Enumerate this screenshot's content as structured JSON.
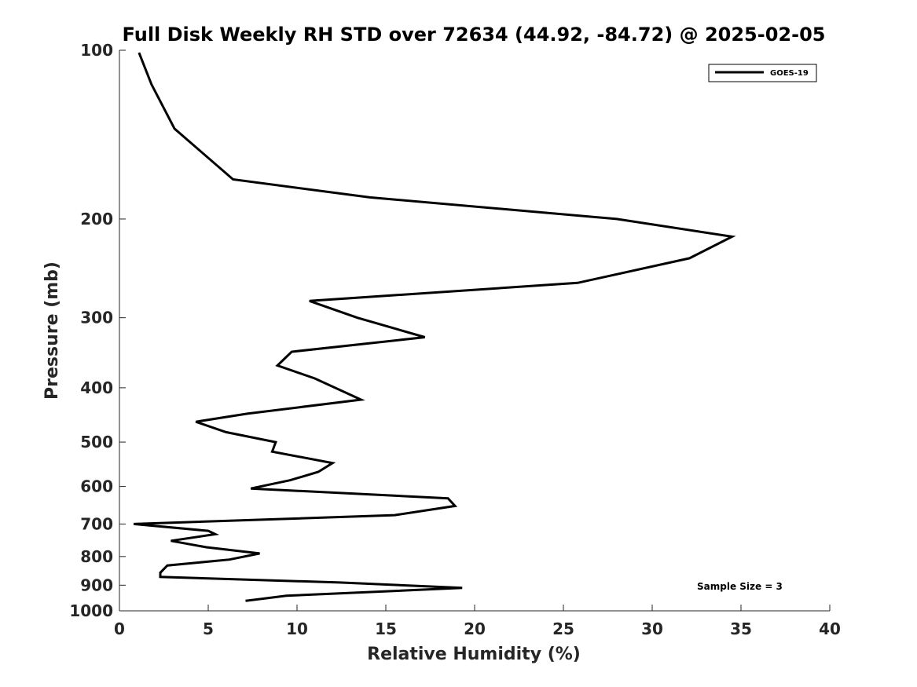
{
  "chart_data": {
    "type": "line",
    "title": "Full Disk Weekly RH STD over 72634 (44.92, -84.72) @ 2025-02-05",
    "xlabel": "Relative Humidity (%)",
    "ylabel": "Pressure (mb)",
    "xlim": [
      0,
      40
    ],
    "ylim": [
      100,
      1000
    ],
    "y_scale": "log",
    "y_reversed": true,
    "xticks": [
      0,
      5,
      10,
      15,
      20,
      25,
      30,
      35,
      40
    ],
    "yticks": [
      100,
      200,
      300,
      400,
      500,
      600,
      700,
      800,
      900,
      1000
    ],
    "grid": false,
    "legend_position": "top-right",
    "series": [
      {
        "name": "GOES-19",
        "color": "#000000",
        "x": [
          1.1,
          1.8,
          3.1,
          6.4,
          14.1,
          28.0,
          34.5,
          32.1,
          25.8,
          10.7,
          13.4,
          17.2,
          9.7,
          8.9,
          11.0,
          13.6,
          7.2,
          4.3,
          6.0,
          8.8,
          8.6,
          12.0,
          11.2,
          9.6,
          7.4,
          18.5,
          18.9,
          15.5,
          0.8,
          5.0,
          5.4,
          2.9,
          4.9,
          7.9,
          6.2,
          2.7,
          2.3,
          2.3,
          12.4,
          19.3,
          9.4,
          7.1
        ],
        "y": [
          101,
          115,
          138,
          170,
          183,
          200,
          215,
          235,
          260,
          280,
          300,
          325,
          345,
          365,
          385,
          420,
          445,
          460,
          480,
          500,
          520,
          545,
          565,
          585,
          605,
          630,
          650,
          675,
          700,
          720,
          730,
          750,
          770,
          790,
          810,
          830,
          855,
          870,
          890,
          910,
          940,
          960
        ]
      }
    ],
    "annotations": [
      "Sample Size = 3"
    ]
  }
}
